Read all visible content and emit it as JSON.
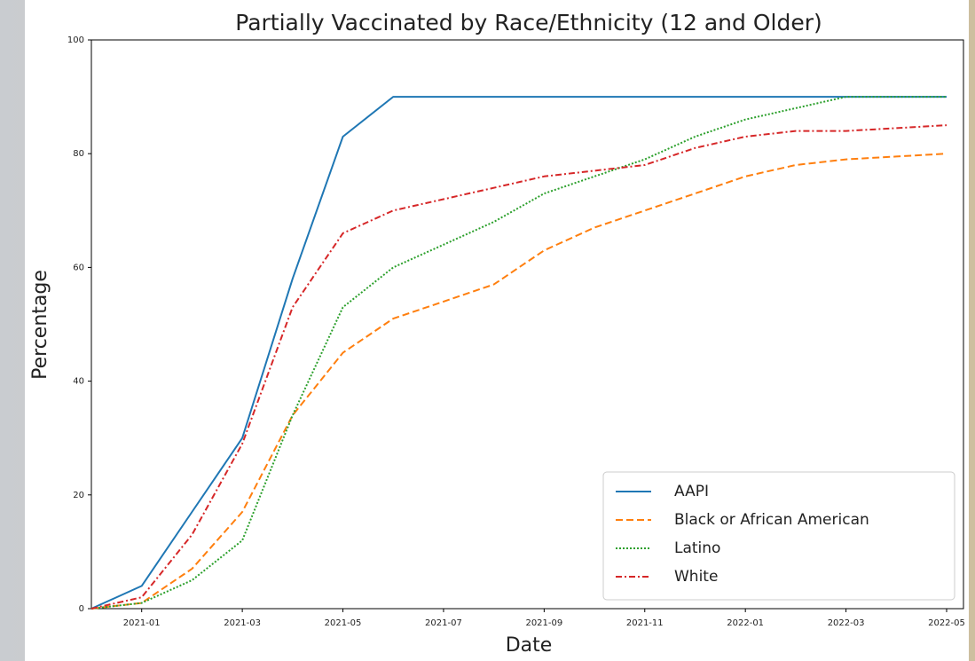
{
  "chart_data": {
    "type": "line",
    "title": "Partially Vaccinated by Race/Ethnicity (12 and Older)",
    "xlabel": "Date",
    "ylabel": "Percentage",
    "x": [
      "2020-12",
      "2021-01",
      "2021-02",
      "2021-03",
      "2021-04",
      "2021-05",
      "2021-06",
      "2021-07",
      "2021-08",
      "2021-09",
      "2021-10",
      "2021-11",
      "2021-12",
      "2022-01",
      "2022-02",
      "2022-03",
      "2022-04",
      "2022-05"
    ],
    "series": [
      {
        "name": "AAPI",
        "color": "#1f77b4",
        "dash": "solid",
        "values": [
          0,
          4,
          17,
          30,
          58,
          83,
          90,
          90,
          90,
          90,
          90,
          90,
          90,
          90,
          90,
          90,
          90,
          90
        ]
      },
      {
        "name": "Black or African American",
        "color": "#ff7f0e",
        "dash": "dashed",
        "values": [
          0,
          1,
          7,
          17,
          34,
          45,
          51,
          54,
          57,
          63,
          67,
          70,
          73,
          76,
          78,
          79,
          79.5,
          80
        ]
      },
      {
        "name": "Latino",
        "color": "#2ca02c",
        "dash": "dotted",
        "values": [
          0,
          1,
          5,
          12,
          34,
          53,
          60,
          64,
          68,
          73,
          76,
          79,
          83,
          86,
          88,
          90,
          90,
          90
        ]
      },
      {
        "name": "White",
        "color": "#d62728",
        "dash": "dashdot",
        "values": [
          0,
          2,
          13,
          29,
          53,
          66,
          70,
          72,
          74,
          76,
          77,
          78,
          81,
          83,
          84,
          84,
          84.5,
          85
        ]
      }
    ],
    "xlim": [
      "2020-12",
      "2022-05"
    ],
    "xticks": [
      "2021-01",
      "2021-03",
      "2021-05",
      "2021-07",
      "2021-09",
      "2021-11",
      "2022-01",
      "2022-03",
      "2022-05"
    ],
    "ylim": [
      0,
      100
    ],
    "yticks": [
      0,
      20,
      40,
      60,
      80,
      100
    ],
    "legend": "lower right",
    "grid": false
  }
}
